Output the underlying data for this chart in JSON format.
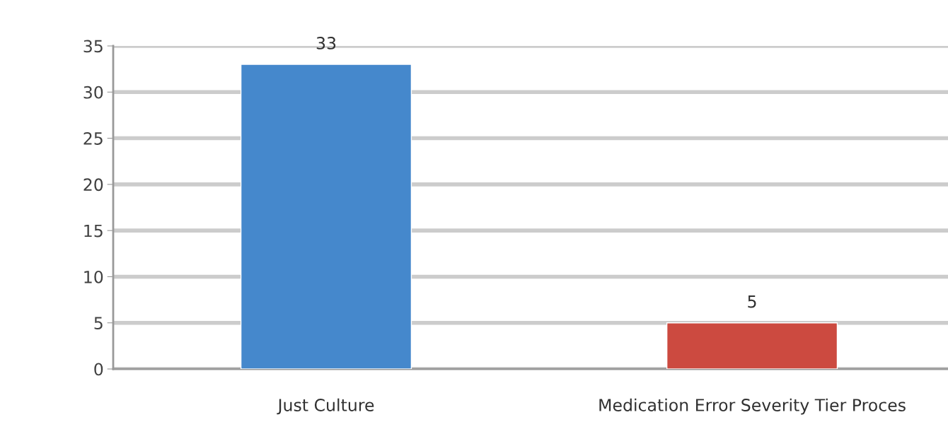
{
  "chart_data": {
    "type": "bar",
    "categories": [
      "Just Culture",
      "Medication Error Severity Tier Proces"
    ],
    "values": [
      33,
      5
    ],
    "colors": [
      "#4588cc",
      "#cc4a40"
    ],
    "ylim": [
      0,
      35
    ],
    "yticks": [
      0,
      5,
      10,
      15,
      20,
      25,
      30,
      35
    ],
    "grid": "y",
    "data_labels": true
  }
}
